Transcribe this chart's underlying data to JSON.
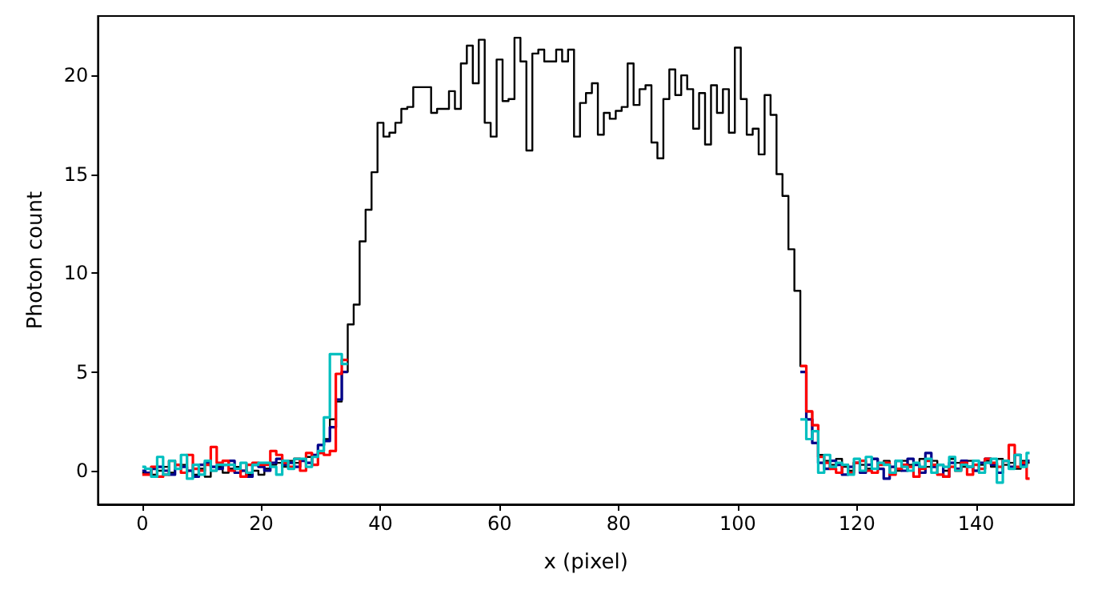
{
  "chart_data": {
    "type": "step",
    "xlabel": "x (pixel)",
    "ylabel": "Photon count",
    "xlim": [
      -7.45,
      156.45
    ],
    "ylim": [
      -1.7,
      23.0
    ],
    "xticks": [
      0,
      20,
      40,
      60,
      80,
      100,
      120,
      140
    ],
    "yticks": [
      0,
      5,
      10,
      15,
      20
    ],
    "grid": false,
    "marker": "none",
    "line_style": "solid",
    "x": [
      0,
      1,
      2,
      3,
      4,
      5,
      6,
      7,
      8,
      9,
      10,
      11,
      12,
      13,
      14,
      15,
      16,
      17,
      18,
      19,
      20,
      21,
      22,
      23,
      24,
      25,
      26,
      27,
      28,
      29,
      30,
      31,
      32,
      33,
      34,
      35,
      36,
      37,
      38,
      39,
      40,
      41,
      42,
      43,
      44,
      45,
      46,
      47,
      48,
      49,
      50,
      51,
      52,
      53,
      54,
      55,
      56,
      57,
      58,
      59,
      60,
      61,
      62,
      63,
      64,
      65,
      66,
      67,
      68,
      69,
      70,
      71,
      72,
      73,
      74,
      75,
      76,
      77,
      78,
      79,
      80,
      81,
      82,
      83,
      84,
      85,
      86,
      87,
      88,
      89,
      90,
      91,
      92,
      93,
      94,
      95,
      96,
      97,
      98,
      99,
      100,
      101,
      102,
      103,
      104,
      105,
      106,
      107,
      108,
      109,
      110,
      111,
      112,
      113,
      114,
      115,
      116,
      117,
      118,
      119,
      120,
      121,
      122,
      123,
      124,
      125,
      126,
      127,
      128,
      129,
      130,
      131,
      132,
      133,
      134,
      135,
      136,
      137,
      138,
      139,
      140,
      141,
      142,
      143,
      144,
      145,
      146,
      147,
      148,
      149
    ],
    "series": [
      {
        "color": "#000000",
        "values": [
          -0.1,
          0.1,
          -0.2,
          0.0,
          0.2,
          -0.1,
          0.1,
          0.3,
          0.0,
          -0.2,
          0.1,
          -0.3,
          0.0,
          0.2,
          -0.1,
          0.1,
          0.2,
          0.0,
          -0.2,
          0.0,
          -0.2,
          0.1,
          0.3,
          0.4,
          0.2,
          0.5,
          0.4,
          0.6,
          0.7,
          0.8,
          1.0,
          1.6,
          2.6,
          3.5,
          5.0,
          7.4,
          8.4,
          11.6,
          13.2,
          15.1,
          17.6,
          16.9,
          17.1,
          17.6,
          18.3,
          18.4,
          19.4,
          19.4,
          19.4,
          18.1,
          18.3,
          18.3,
          19.2,
          18.3,
          20.6,
          21.5,
          19.6,
          21.8,
          17.6,
          16.9,
          20.8,
          18.7,
          18.8,
          21.9,
          20.7,
          16.2,
          21.1,
          21.3,
          20.7,
          20.7,
          21.3,
          20.7,
          21.3,
          16.9,
          18.6,
          19.1,
          19.6,
          17.0,
          18.1,
          17.8,
          18.2,
          18.4,
          20.6,
          18.5,
          19.3,
          19.5,
          16.6,
          15.8,
          18.8,
          20.3,
          19.0,
          20.0,
          19.3,
          17.3,
          19.1,
          16.5,
          19.5,
          18.1,
          19.3,
          17.1,
          21.4,
          18.8,
          17.0,
          17.3,
          16.0,
          19.0,
          18.0,
          15.0,
          13.9,
          11.2,
          9.1,
          5.3,
          3.0,
          2.0,
          0.8,
          0.5,
          0.3,
          0.6,
          0.2,
          0.0,
          0.4,
          0.3,
          0.1,
          0.6,
          0.3,
          0.5,
          0.2,
          0.0,
          0.5,
          0.3,
          0.4,
          0.6,
          0.2,
          0.5,
          0.3,
          0.0,
          0.6,
          0.4,
          0.2,
          0.5,
          0.0,
          0.3,
          0.5,
          0.2,
          0.6,
          0.3,
          0.4,
          0.1,
          0.5,
          0.4
        ]
      },
      {
        "color": "#00008b",
        "values": [
          0.0,
          -0.1,
          0.1,
          0.2,
          0.0,
          -0.2,
          0.3,
          0.2,
          0.0,
          -0.3,
          0.3,
          0.4,
          0.2,
          0.1,
          0.3,
          0.5,
          -0.1,
          0.0,
          -0.3,
          0.3,
          0.2,
          0.0,
          0.4,
          0.6,
          0.3,
          0.4,
          0.2,
          0.5,
          0.4,
          0.8,
          1.3,
          1.5,
          2.2,
          3.6,
          5.0,
          null,
          null,
          null,
          null,
          null,
          null,
          null,
          null,
          null,
          null,
          null,
          null,
          null,
          null,
          null,
          null,
          null,
          null,
          null,
          null,
          null,
          null,
          null,
          null,
          null,
          null,
          null,
          null,
          null,
          null,
          null,
          null,
          null,
          null,
          null,
          null,
          null,
          null,
          null,
          null,
          null,
          null,
          null,
          null,
          null,
          null,
          null,
          null,
          null,
          null,
          null,
          null,
          null,
          null,
          null,
          null,
          null,
          null,
          null,
          null,
          null,
          null,
          null,
          null,
          null,
          null,
          null,
          null,
          null,
          null,
          null,
          null,
          null,
          null,
          null,
          null,
          5.0,
          2.6,
          1.4,
          0.4,
          0.1,
          0.5,
          0.3,
          -0.2,
          0.2,
          0.4,
          -0.1,
          0.3,
          0.6,
          0.1,
          -0.4,
          0.2,
          0.5,
          0.0,
          0.6,
          0.3,
          -0.1,
          0.9,
          0.2,
          0.3,
          -0.3,
          0.4,
          0.1,
          0.5,
          0.2,
          0.0,
          0.4,
          0.6,
          0.3,
          -0.1,
          0.5,
          0.2,
          0.8,
          0.3,
          0.5
        ]
      },
      {
        "color": "#ff0000",
        "values": [
          -0.2,
          -0.2,
          0.2,
          -0.3,
          -0.2,
          0.5,
          0.3,
          -0.1,
          0.8,
          0.1,
          0.0,
          0.3,
          1.2,
          0.4,
          0.5,
          0.0,
          0.1,
          -0.3,
          0.3,
          0.4,
          0.3,
          0.3,
          1.0,
          0.8,
          0.4,
          0.2,
          0.6,
          0.0,
          0.9,
          0.3,
          0.9,
          0.8,
          1.0,
          4.9,
          5.6,
          null,
          null,
          null,
          null,
          null,
          null,
          null,
          null,
          null,
          null,
          null,
          null,
          null,
          null,
          null,
          null,
          null,
          null,
          null,
          null,
          null,
          null,
          null,
          null,
          null,
          null,
          null,
          null,
          null,
          null,
          null,
          null,
          null,
          null,
          null,
          null,
          null,
          null,
          null,
          null,
          null,
          null,
          null,
          null,
          null,
          null,
          null,
          null,
          null,
          null,
          null,
          null,
          null,
          null,
          null,
          null,
          null,
          null,
          null,
          null,
          null,
          null,
          null,
          null,
          null,
          null,
          null,
          null,
          null,
          null,
          null,
          null,
          null,
          null,
          null,
          null,
          5.3,
          3.0,
          2.3,
          0.7,
          0.4,
          0.1,
          -0.1,
          0.3,
          -0.1,
          0.4,
          0.5,
          0.0,
          -0.1,
          0.3,
          0.4,
          -0.2,
          0.1,
          0.3,
          0.2,
          -0.3,
          0.1,
          0.5,
          0.3,
          -0.2,
          -0.3,
          0.2,
          0.0,
          0.4,
          -0.2,
          0.3,
          0.1,
          0.6,
          0.4,
          0.2,
          0.5,
          1.3,
          0.2,
          0.4,
          -0.4
        ]
      },
      {
        "color": "#00bfbf",
        "values": [
          0.2,
          0.1,
          -0.3,
          0.7,
          -0.2,
          0.5,
          0.1,
          0.8,
          -0.4,
          0.3,
          -0.2,
          0.5,
          0.0,
          0.3,
          0.3,
          0.3,
          0.1,
          0.4,
          -0.1,
          0.3,
          0.4,
          0.4,
          0.2,
          -0.2,
          0.5,
          0.1,
          0.6,
          0.6,
          0.2,
          0.7,
          1.0,
          2.7,
          5.9,
          5.9,
          5.4,
          null,
          null,
          null,
          null,
          null,
          null,
          null,
          null,
          null,
          null,
          null,
          null,
          null,
          null,
          null,
          null,
          null,
          null,
          null,
          null,
          null,
          null,
          null,
          null,
          null,
          null,
          null,
          null,
          null,
          null,
          null,
          null,
          null,
          null,
          null,
          null,
          null,
          null,
          null,
          null,
          null,
          null,
          null,
          null,
          null,
          null,
          null,
          null,
          null,
          null,
          null,
          null,
          null,
          null,
          null,
          null,
          null,
          null,
          null,
          null,
          null,
          null,
          null,
          null,
          null,
          null,
          null,
          null,
          null,
          null,
          null,
          null,
          null,
          null,
          null,
          null,
          2.6,
          1.6,
          2.0,
          -0.1,
          0.8,
          0.2,
          0.4,
          0.3,
          -0.2,
          0.6,
          0.0,
          0.7,
          0.1,
          0.4,
          0.3,
          -0.1,
          0.5,
          0.2,
          0.0,
          0.4,
          0.2,
          0.6,
          -0.1,
          0.3,
          0.2,
          0.7,
          0.0,
          0.3,
          0.2,
          0.5,
          -0.1,
          0.4,
          0.6,
          -0.6,
          0.5,
          0.1,
          0.8,
          0.2,
          0.9
        ]
      }
    ]
  }
}
